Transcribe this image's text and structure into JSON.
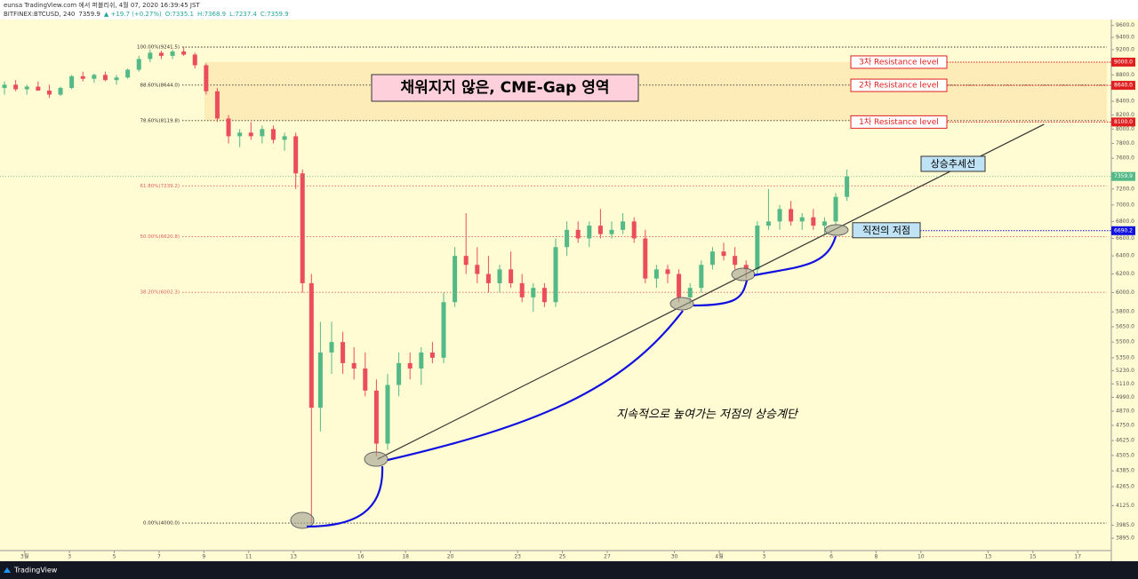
{
  "header": {
    "line1": "eunsa TradingView.com 에서 퍼블리쉬, 4월 07, 2020 16:39:45 JST",
    "symbol": "BITFINEX:BTCUSD, 240",
    "last": "7359.9",
    "change": "▲ +19.7 (+0.27%)",
    "ohlc": [
      "O:7335.1",
      "H:7368.9",
      "L:7237.4",
      "C:7359.9"
    ]
  },
  "footer": {
    "brand": "TradingView"
  },
  "chart_data": {
    "type": "candlestick",
    "log_scale": true,
    "up_color": "#53b987",
    "down_color": "#eb4d5c",
    "xlim": [
      -1.1,
      48.5
    ],
    "ylim": [
      3811,
      9700
    ],
    "xticks": [
      {
        "value": 0,
        "label": "3월"
      },
      {
        "value": 2,
        "label": "3"
      },
      {
        "value": 4,
        "label": "5"
      },
      {
        "value": 6,
        "label": "7"
      },
      {
        "value": 8,
        "label": "9"
      },
      {
        "value": 10,
        "label": "11"
      },
      {
        "value": 12,
        "label": "13"
      },
      {
        "value": 15,
        "label": "16"
      },
      {
        "value": 17,
        "label": "18"
      },
      {
        "value": 19,
        "label": "20"
      },
      {
        "value": 22,
        "label": "23"
      },
      {
        "value": 24,
        "label": "25"
      },
      {
        "value": 26,
        "label": "27"
      },
      {
        "value": 29,
        "label": "30"
      },
      {
        "value": 31,
        "label": "4월"
      },
      {
        "value": 33,
        "label": "3"
      },
      {
        "value": 36,
        "label": "6"
      },
      {
        "value": 38,
        "label": "8"
      },
      {
        "value": 40,
        "label": "10"
      },
      {
        "value": 43,
        "label": "13"
      },
      {
        "value": 45,
        "label": "15"
      },
      {
        "value": 47,
        "label": "17"
      }
    ],
    "yticks": [
      {
        "value": 9600,
        "label": "9600.0"
      },
      {
        "value": 9400,
        "label": "9400.0"
      },
      {
        "value": 9200,
        "label": "9200.0"
      },
      {
        "value": 8800,
        "label": "8800.0"
      },
      {
        "value": 8400,
        "label": "8400.0"
      },
      {
        "value": 8200,
        "label": "8200.0"
      },
      {
        "value": 8000,
        "label": "8000.0"
      },
      {
        "value": 7800,
        "label": "7800.0"
      },
      {
        "value": 7600,
        "label": "7600.0"
      },
      {
        "value": 7200,
        "label": "7200.0"
      },
      {
        "value": 7000,
        "label": "7000.0"
      },
      {
        "value": 6800,
        "label": "6800.0"
      },
      {
        "value": 6600,
        "label": "6600.0"
      },
      {
        "value": 6400,
        "label": "6400.0"
      },
      {
        "value": 6200,
        "label": "6200.0"
      },
      {
        "value": 6000,
        "label": "6000.0"
      },
      {
        "value": 5800,
        "label": "5800.0"
      },
      {
        "value": 5650,
        "label": "5650.0"
      },
      {
        "value": 5500,
        "label": "5500.0"
      },
      {
        "value": 5350,
        "label": "5350.0"
      },
      {
        "value": 5230,
        "label": "5230.0"
      },
      {
        "value": 5110,
        "label": "5110.0"
      },
      {
        "value": 4990,
        "label": "4990.0"
      },
      {
        "value": 4870,
        "label": "4870.0"
      },
      {
        "value": 4750,
        "label": "4750.0"
      },
      {
        "value": 4625,
        "label": "4625.0"
      },
      {
        "value": 4505,
        "label": "4505.0"
      },
      {
        "value": 4385,
        "label": "4385.0"
      },
      {
        "value": 4265,
        "label": "4265.0"
      },
      {
        "value": 4125,
        "label": "4125.0"
      },
      {
        "value": 3985,
        "label": "3985.0"
      },
      {
        "value": 3895,
        "label": "3895.0"
      }
    ],
    "x": [
      -0.9,
      -0.4,
      0.1,
      0.6,
      1.1,
      1.6,
      2.1,
      2.6,
      3.1,
      3.6,
      4.1,
      4.6,
      5.1,
      5.6,
      6.1,
      6.6,
      7.1,
      7.6,
      8.1,
      8.6,
      9.1,
      9.6,
      10.1,
      10.6,
      11.1,
      11.6,
      12.1,
      12.4,
      12.8,
      13.2,
      13.7,
      14.2,
      14.7,
      15.2,
      15.7,
      16.2,
      16.7,
      17.2,
      17.7,
      18.2,
      18.7,
      19.2,
      19.7,
      20.2,
      20.7,
      21.2,
      21.7,
      22.2,
      22.7,
      23.2,
      23.7,
      24.2,
      24.7,
      25.2,
      25.7,
      26.2,
      26.7,
      27.2,
      27.7,
      28.2,
      28.7,
      29.2,
      29.7,
      30.2,
      30.7,
      31.2,
      31.7,
      32.2,
      32.7,
      33.2,
      33.7,
      34.2,
      34.7,
      35.2,
      35.7,
      36.2,
      36.7
    ],
    "open": [
      8600,
      8650,
      8580,
      8620,
      8560,
      8500,
      8600,
      8780,
      8740,
      8800,
      8720,
      8760,
      8880,
      9050,
      9150,
      9100,
      9170,
      9120,
      8950,
      8550,
      8150,
      7900,
      7950,
      7900,
      8000,
      7850,
      7900,
      7400,
      6100,
      4900,
      5400,
      5500,
      5300,
      5250,
      5050,
      4600,
      5100,
      5300,
      5250,
      5400,
      5350,
      5900,
      6400,
      6300,
      6200,
      6100,
      6250,
      6100,
      5950,
      6050,
      5900,
      6500,
      6700,
      6600,
      6750,
      6650,
      6700,
      6800,
      6600,
      6150,
      6250,
      6200,
      5950,
      6050,
      6300,
      6450,
      6400,
      6300,
      6250,
      6750,
      6800,
      6950,
      6800,
      6850,
      6750,
      6800,
      7100
    ],
    "high": [
      8700,
      8720,
      8650,
      8700,
      8650,
      8620,
      8800,
      8850,
      8820,
      8850,
      8800,
      8900,
      9100,
      9200,
      9180,
      9200,
      9241.5,
      9150,
      8980,
      8600,
      8200,
      8000,
      8100,
      8050,
      8050,
      7950,
      7950,
      7450,
      6200,
      5700,
      5700,
      5600,
      5450,
      5400,
      5150,
      5200,
      5400,
      5400,
      5450,
      5500,
      6000,
      6500,
      6900,
      6500,
      6400,
      6300,
      6450,
      6200,
      6100,
      6100,
      6600,
      6800,
      6800,
      6800,
      6950,
      6800,
      6900,
      6850,
      6700,
      6300,
      6300,
      6250,
      6100,
      6350,
      6500,
      6550,
      6500,
      6350,
      6800,
      7200,
      7000,
      7050,
      6900,
      6950,
      6850,
      7150,
      7450
    ],
    "low": [
      8500,
      8550,
      8500,
      8560,
      8450,
      8480,
      8580,
      8700,
      8680,
      8700,
      8650,
      8740,
      8850,
      9000,
      9050,
      9050,
      9100,
      8900,
      8500,
      8100,
      7800,
      7750,
      7850,
      7800,
      7800,
      7700,
      7200,
      6000,
      4000,
      4700,
      5200,
      5200,
      5150,
      5000,
      4500,
      4550,
      5000,
      5150,
      5100,
      5300,
      5300,
      5850,
      6200,
      6100,
      6000,
      6000,
      6050,
      5900,
      5800,
      5850,
      5850,
      6400,
      6550,
      6500,
      6600,
      6600,
      6650,
      6550,
      6100,
      6050,
      6100,
      5900,
      5880,
      6000,
      6250,
      6350,
      6250,
      6150,
      6200,
      6700,
      6700,
      6750,
      6700,
      6700,
      6650,
      6750,
      7050
    ],
    "close": [
      8650,
      8580,
      8620,
      8560,
      8500,
      8600,
      8780,
      8740,
      8800,
      8720,
      8760,
      8880,
      9050,
      9150,
      9100,
      9170,
      9120,
      8950,
      8550,
      8150,
      7900,
      7950,
      7900,
      8000,
      7850,
      7900,
      7400,
      6100,
      4900,
      5400,
      5500,
      5300,
      5250,
      5050,
      4600,
      5100,
      5300,
      5250,
      5400,
      5350,
      5900,
      6400,
      6300,
      6200,
      6100,
      6250,
      6100,
      5950,
      6050,
      5900,
      6500,
      6700,
      6600,
      6750,
      6650,
      6700,
      6800,
      6600,
      6150,
      6250,
      6200,
      5950,
      6050,
      6300,
      6450,
      6400,
      6300,
      6250,
      6750,
      6800,
      6950,
      6800,
      6850,
      6750,
      6800,
      7100,
      7360
    ],
    "fib": {
      "labels": [
        "100.00%(9241.5)",
        "88.60%(8644.0)",
        "78.60%(8119.8)",
        "61.80%(7239.2)",
        "50.00%(6620.8)",
        "38.20%(6002.3)",
        "0.00%(4000.0)"
      ],
      "values": [
        9241.5,
        8644.0,
        8119.8,
        7239.2,
        6620.8,
        6002.3,
        4000.0
      ],
      "colors": [
        "#333333",
        "#333333",
        "#333333",
        "#e06060",
        "#e06060",
        "#e06060",
        "#333333"
      ]
    },
    "gap": {
      "label": "채워지지 않은, CME-Gap 영역",
      "range": [
        8119.8,
        9000
      ]
    },
    "resistance": {
      "names": [
        "3차 Resistance level",
        "2차 Resistance level",
        "1차 Resistance level"
      ],
      "values": [
        9000,
        8640,
        8100
      ],
      "value_labels": [
        "9000.0",
        "8640.0",
        "8100.0"
      ]
    },
    "last_price": {
      "value": 7359.9,
      "label": "7359.9"
    },
    "recent_low": {
      "name": "직전의 저점",
      "value": 6690.2,
      "label": "6690.2"
    },
    "trendline": {
      "label": "상승추세선",
      "x": [
        15.75,
        45.5
      ],
      "y": [
        4476,
        8068
      ]
    },
    "annotation": "지속적으로 높여가는 저점의 상승계단"
  }
}
